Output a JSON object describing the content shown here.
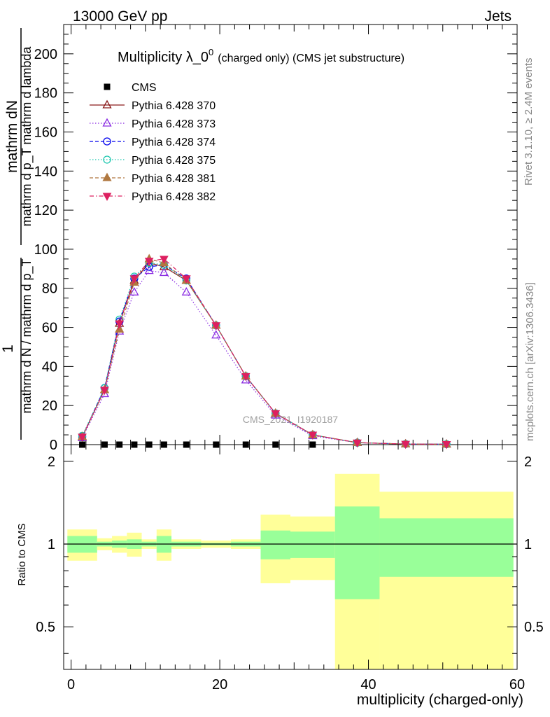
{
  "header": {
    "left": "13000 GeV pp",
    "right": "Jets"
  },
  "side_labels": {
    "rivet": "Rivet 3.1.10, ≥ 2.4M events",
    "mcplots": "mcplots.cern.ch [arXiv:1306.3436]"
  },
  "watermark": "CMS_2021_I1920187",
  "chart_data": [
    {
      "type": "line",
      "panel": "main",
      "title": "Multiplicity λ_0",
      "title_sup": "0",
      "title_suffix": "(charged only) (CMS jet substructure)",
      "ylabel_numerator": "mathrm dN",
      "ylabel_denominator": "mathrm d p_T mathrm d lambda",
      "ylabel_factor_num": "1",
      "ylabel_factor_den": "mathrm d N / mathrm d p_T",
      "xlabel": "multiplicity (charged-only)",
      "xlim": [
        -1,
        60
      ],
      "ylim": [
        0,
        215
      ],
      "yticks": [
        0,
        20,
        40,
        60,
        80,
        100,
        120,
        140,
        160,
        180,
        200
      ],
      "xticks": [
        0,
        20,
        40,
        60
      ],
      "legend_position": "top-left",
      "x": [
        1.5,
        4.5,
        6.5,
        8.5,
        10.5,
        12.5,
        15.5,
        19.5,
        23.5,
        27.5,
        32.5,
        38.5,
        45,
        50.5
      ],
      "series": [
        {
          "name": "CMS",
          "color": "#000000",
          "marker": "square",
          "dash": "none",
          "values": [
            0,
            0,
            0,
            0,
            0,
            0,
            0,
            0,
            0,
            0,
            0,
            null,
            null,
            null
          ]
        },
        {
          "name": "Pythia 6.428 370",
          "color": "#8b1a1a",
          "marker": "triangle-open",
          "dash": "solid",
          "values": [
            4,
            28,
            62,
            84,
            93,
            91,
            84,
            61,
            35,
            16,
            5,
            1,
            0.3,
            0.2
          ]
        },
        {
          "name": "Pythia 6.428 373",
          "color": "#8a2be2",
          "marker": "triangle-open",
          "dash": "dotted",
          "values": [
            3.5,
            26,
            58,
            78,
            89,
            88,
            78,
            56,
            33,
            15,
            4.5,
            1,
            0.3,
            0.2
          ]
        },
        {
          "name": "Pythia 6.428 374",
          "color": "#0000ee",
          "marker": "circle-open",
          "dash": "dashed",
          "values": [
            4,
            29,
            63,
            85,
            91,
            92,
            85,
            61,
            35,
            16,
            5,
            1,
            0.3,
            0.2
          ]
        },
        {
          "name": "Pythia 6.428 375",
          "color": "#20c8b0",
          "marker": "circle-open",
          "dash": "dotted",
          "values": [
            4.5,
            29,
            64,
            86,
            93,
            92,
            84,
            61,
            35,
            16,
            5,
            1,
            0.3,
            0.2
          ]
        },
        {
          "name": "Pythia 6.428 381",
          "color": "#b07840",
          "marker": "triangle-filled",
          "dash": "dashed",
          "values": [
            4,
            28,
            59,
            83,
            95,
            93,
            84,
            61,
            35,
            16,
            5,
            1,
            0.3,
            0.2
          ]
        },
        {
          "name": "Pythia 6.428 382",
          "color": "#dd2060",
          "marker": "triangle-down-filled",
          "dash": "dashdot",
          "values": [
            4,
            28,
            62,
            85,
            94,
            95,
            85,
            61,
            35,
            16,
            5,
            1,
            0.3,
            0.2
          ]
        }
      ]
    },
    {
      "type": "area",
      "panel": "ratio",
      "ylabel": "Ratio to CMS",
      "xlabel": "multiplicity (charged-only)",
      "xlim": [
        -1,
        60
      ],
      "ylim": [
        0.35,
        2.3
      ],
      "yticks": [
        0.5,
        1,
        2
      ],
      "xticks": [
        0,
        20,
        40,
        60
      ],
      "reference": 1,
      "bins": [
        {
          "lo": -0.5,
          "hi": 3.5,
          "stat": [
            0.93,
            1.07
          ],
          "total": [
            0.87,
            1.13
          ]
        },
        {
          "lo": 3.5,
          "hi": 5.5,
          "stat": [
            0.98,
            1.02
          ],
          "total": [
            0.95,
            1.05
          ]
        },
        {
          "lo": 5.5,
          "hi": 7.5,
          "stat": [
            0.97,
            1.03
          ],
          "total": [
            0.93,
            1.07
          ]
        },
        {
          "lo": 7.5,
          "hi": 9.5,
          "stat": [
            0.96,
            1.04
          ],
          "total": [
            0.9,
            1.1
          ]
        },
        {
          "lo": 9.5,
          "hi": 11.5,
          "stat": [
            0.98,
            1.02
          ],
          "total": [
            0.96,
            1.04
          ]
        },
        {
          "lo": 11.5,
          "hi": 13.5,
          "stat": [
            0.93,
            1.07
          ],
          "total": [
            0.87,
            1.13
          ]
        },
        {
          "lo": 13.5,
          "hi": 17.5,
          "stat": [
            0.98,
            1.02
          ],
          "total": [
            0.96,
            1.04
          ]
        },
        {
          "lo": 17.5,
          "hi": 21.5,
          "stat": [
            0.99,
            1.01
          ],
          "total": [
            0.97,
            1.03
          ]
        },
        {
          "lo": 21.5,
          "hi": 25.5,
          "stat": [
            0.98,
            1.02
          ],
          "total": [
            0.96,
            1.04
          ]
        },
        {
          "lo": 25.5,
          "hi": 29.5,
          "stat": [
            0.88,
            1.12
          ],
          "total": [
            0.72,
            1.28
          ]
        },
        {
          "lo": 29.5,
          "hi": 35.5,
          "stat": [
            0.89,
            1.11
          ],
          "total": [
            0.74,
            1.26
          ]
        },
        {
          "lo": 35.5,
          "hi": 41.5,
          "stat": [
            0.63,
            1.37
          ],
          "total": [
            0.35,
            1.8
          ]
        },
        {
          "lo": 41.5,
          "hi": 59.5,
          "stat": [
            0.76,
            1.24
          ],
          "total": [
            0.35,
            1.55
          ]
        }
      ],
      "band_colors": {
        "total": "#ffff99",
        "stat": "#99ff99"
      }
    }
  ]
}
